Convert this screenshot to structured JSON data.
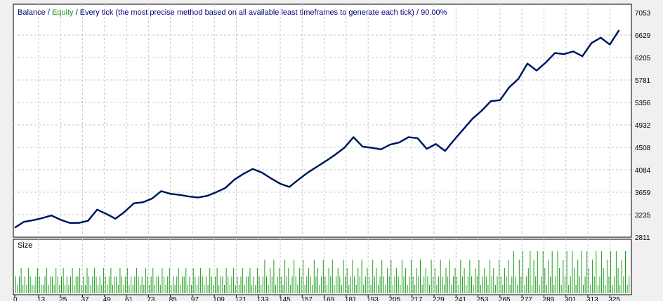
{
  "header": {
    "balance_label": "Balance",
    "separator_1": " / ",
    "equity_label": "Equity",
    "separator_2": " / ",
    "description": "Every tick (the most precise method based on all available least timeframes to generate each tick) / 90.00%"
  },
  "sub_panel": {
    "label": "Size"
  },
  "colors": {
    "balance": "#000080",
    "equity": "#1c8c1c",
    "grid": "#c8c8c8",
    "size_bar": "#1c9c1c",
    "background": "#ffffff",
    "frame": "#000000"
  },
  "chart_data": [
    {
      "type": "line",
      "series": [
        {
          "name": "Balance",
          "x": [
            0,
            5,
            10,
            15,
            20,
            25,
            30,
            35,
            40,
            45,
            50,
            55,
            60,
            65,
            70,
            75,
            80,
            85,
            90,
            95,
            100,
            105,
            110,
            115,
            120,
            125,
            130,
            135,
            140,
            145,
            150,
            155,
            160,
            165,
            170,
            175,
            180,
            185,
            190,
            195,
            200,
            205,
            210,
            215,
            220,
            225,
            230,
            235,
            240,
            245,
            250,
            255,
            260,
            265,
            270,
            275,
            280,
            285,
            290,
            295,
            300,
            305,
            310,
            315,
            320,
            325,
            330
          ],
          "values": [
            2990,
            3100,
            3130,
            3170,
            3220,
            3140,
            3080,
            3080,
            3120,
            3330,
            3250,
            3160,
            3290,
            3450,
            3470,
            3540,
            3680,
            3630,
            3610,
            3580,
            3560,
            3590,
            3660,
            3740,
            3900,
            4010,
            4100,
            4030,
            3920,
            3820,
            3760,
            3900,
            4030,
            4140,
            4250,
            4370,
            4500,
            4700,
            4520,
            4500,
            4470,
            4560,
            4600,
            4700,
            4680,
            4480,
            4570,
            4440,
            4650,
            4850,
            5050,
            5200,
            5380,
            5400,
            5640,
            5800,
            6090,
            5960,
            6110,
            6290,
            6270,
            6320,
            6230,
            6480,
            6580,
            6450,
            6720
          ]
        },
        {
          "name": "Equity",
          "x": [
            0,
            5,
            10,
            15,
            20,
            25,
            30,
            35,
            40,
            45,
            50,
            55,
            60,
            65,
            70,
            75,
            80,
            85,
            90,
            95,
            100,
            105,
            110,
            115,
            120,
            125,
            130,
            135,
            140,
            145,
            150,
            155,
            160,
            165,
            170,
            175,
            180,
            185,
            190,
            195,
            200,
            205,
            210,
            215,
            220,
            225,
            230,
            235,
            240,
            245,
            250,
            255,
            260,
            265,
            270,
            275,
            280,
            285,
            290,
            295,
            300,
            305,
            310,
            315,
            320,
            325,
            330
          ],
          "values": [
            2990,
            3100,
            3130,
            3170,
            3220,
            3140,
            3080,
            3080,
            3120,
            3330,
            3250,
            3160,
            3290,
            3450,
            3470,
            3540,
            3680,
            3630,
            3610,
            3580,
            3560,
            3590,
            3660,
            3740,
            3900,
            4010,
            4100,
            4030,
            3920,
            3820,
            3760,
            3900,
            4030,
            4140,
            4250,
            4370,
            4500,
            4700,
            4520,
            4500,
            4470,
            4560,
            4600,
            4700,
            4680,
            4480,
            4570,
            4440,
            4650,
            4850,
            5050,
            5200,
            5380,
            5400,
            5640,
            5800,
            6090,
            5960,
            6110,
            6290,
            6270,
            6320,
            6230,
            6480,
            6580,
            6450,
            6720
          ]
        }
      ],
      "ylim": [
        2811,
        7053
      ],
      "y_ticks": [
        "7053",
        "6629",
        "6205",
        "5781",
        "5356",
        "4932",
        "4508",
        "4084",
        "3659",
        "3235",
        "2811"
      ],
      "xlim": [
        0,
        336
      ],
      "grid": true
    },
    {
      "type": "bar",
      "title": "Size",
      "x_ticks": [
        "0",
        "13",
        "25",
        "37",
        "49",
        "61",
        "73",
        "85",
        "97",
        "109",
        "121",
        "133",
        "145",
        "157",
        "169",
        "181",
        "193",
        "205",
        "217",
        "229",
        "241",
        "253",
        "265",
        "277",
        "289",
        "301",
        "313",
        "325"
      ],
      "values": [
        2,
        1,
        2,
        3,
        1,
        2,
        1,
        3,
        2,
        1,
        1,
        2,
        3,
        2,
        1,
        1,
        2,
        3,
        1,
        2,
        2,
        1,
        3,
        2,
        1,
        2,
        3,
        1,
        2,
        1,
        2,
        3,
        1,
        2,
        2,
        3,
        1,
        2,
        1,
        3,
        2,
        1,
        2,
        3,
        2,
        1,
        2,
        1,
        3,
        2,
        1,
        2,
        3,
        1,
        2,
        2,
        1,
        3,
        2,
        1,
        2,
        3,
        1,
        2,
        1,
        2,
        3,
        2,
        1,
        2,
        1,
        3,
        2,
        1,
        2,
        3,
        1,
        2,
        2,
        1,
        3,
        2,
        1,
        2,
        3,
        1,
        2,
        1,
        2,
        3,
        1,
        2,
        2,
        3,
        1,
        2,
        1,
        3,
        2,
        1,
        2,
        3,
        2,
        1,
        2,
        1,
        3,
        2,
        1,
        2,
        3,
        1,
        2,
        2,
        1,
        3,
        2,
        1,
        2,
        3,
        1,
        2,
        1,
        2,
        3,
        1,
        2,
        2,
        3,
        1,
        2,
        1,
        3,
        2,
        1,
        2,
        4,
        2,
        1,
        3,
        2,
        4,
        1,
        2,
        3,
        2,
        1,
        4,
        2,
        3,
        1,
        2,
        4,
        2,
        1,
        3,
        2,
        4,
        1,
        2,
        3,
        2,
        1,
        4,
        2,
        3,
        1,
        2,
        4,
        2,
        1,
        3,
        2,
        4,
        1,
        2,
        3,
        2,
        1,
        4,
        2,
        3,
        1,
        2,
        4,
        2,
        1,
        3,
        2,
        4,
        1,
        2,
        3,
        2,
        1,
        4,
        2,
        3,
        1,
        2,
        4,
        2,
        1,
        3,
        2,
        4,
        1,
        2,
        3,
        2,
        1,
        4,
        2,
        3,
        1,
        2,
        4,
        2,
        1,
        3,
        2,
        4,
        1,
        2,
        3,
        2,
        1,
        4,
        2,
        3,
        1,
        2,
        4,
        2,
        1,
        3,
        2,
        4,
        1,
        2,
        3,
        2,
        1,
        4,
        2,
        3,
        1,
        2,
        4,
        2,
        1,
        3,
        2,
        4,
        1,
        2,
        3,
        2,
        1,
        4,
        2,
        3,
        1,
        2,
        4,
        2,
        1,
        3,
        2,
        4,
        1,
        2,
        5,
        2,
        1,
        4,
        2,
        5,
        1,
        2,
        3,
        5,
        1,
        4,
        2,
        5,
        1,
        2,
        5,
        3,
        1,
        4,
        2,
        5,
        1,
        2,
        5,
        3,
        1,
        4,
        2,
        5,
        1,
        2,
        5,
        3,
        1,
        4,
        2,
        5,
        1,
        2,
        5,
        3,
        1,
        4,
        2,
        5,
        1,
        2,
        5,
        3,
        1,
        4,
        2,
        5,
        1,
        2,
        5,
        3,
        1,
        4,
        2,
        5,
        1,
        2
      ],
      "ylim": [
        0,
        5
      ],
      "xlim": [
        0,
        336
      ]
    }
  ]
}
